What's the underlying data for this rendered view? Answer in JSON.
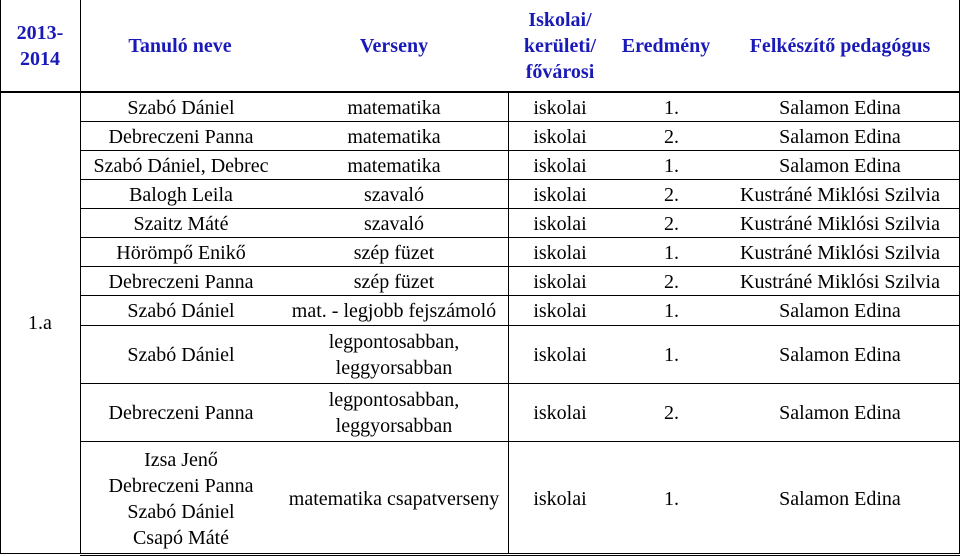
{
  "header": {
    "year": "2013-\n2014",
    "student_name": "Tanuló neve",
    "competition": "Verseny",
    "level": "Iskolai/\nkerületi/\nfővárosi",
    "result": "Eredmény",
    "teacher": "Felkészítő pedagógus"
  },
  "class_label": "1.a",
  "rows": [
    {
      "names": [
        "Szabó Dániel"
      ],
      "competition": "matematika",
      "level": "iskolai",
      "result": "1.",
      "teacher": "Salamon Edina"
    },
    {
      "names": [
        "Debreczeni Panna"
      ],
      "competition": "matematika",
      "level": "iskolai",
      "result": "2.",
      "teacher": "Salamon Edina"
    },
    {
      "names": [
        "Szabó Dániel, Debrec"
      ],
      "competition": "matematika",
      "level": "iskolai",
      "result": "1.",
      "teacher": "Salamon Edina"
    },
    {
      "names": [
        "Balogh Leila"
      ],
      "competition": "szavaló",
      "level": "iskolai",
      "result": "2.",
      "teacher": "Kustráné Miklósi Szilvia"
    },
    {
      "names": [
        "Szaitz Máté"
      ],
      "competition": "szavaló",
      "level": "iskolai",
      "result": "2.",
      "teacher": "Kustráné Miklósi Szilvia"
    },
    {
      "names": [
        "Hörömpő Enikő"
      ],
      "competition": "szép füzet",
      "level": "iskolai",
      "result": "1.",
      "teacher": "Kustráné Miklósi Szilvia"
    },
    {
      "names": [
        "Debreczeni Panna"
      ],
      "competition": "szép füzet",
      "level": "iskolai",
      "result": "2.",
      "teacher": "Kustráné Miklósi Szilvia"
    },
    {
      "names": [
        "Szabó Dániel"
      ],
      "competition": "mat. - legjobb fejszámoló",
      "level": "iskolai",
      "result": "1.",
      "teacher": "Salamon Edina"
    },
    {
      "names": [
        "Szabó Dániel"
      ],
      "competition": "legpontosabban,\nleggyorsabban",
      "level": "iskolai",
      "result": "1.",
      "teacher": "Salamon Edina"
    },
    {
      "names": [
        "Debreczeni Panna"
      ],
      "competition": "legpontosabban,\nleggyorsabban",
      "level": "iskolai",
      "result": "2.",
      "teacher": "Salamon Edina"
    },
    {
      "names": [
        "Izsa Jenő",
        "Debreczeni Panna",
        "Szabó Dániel",
        "Csapó Máté"
      ],
      "competition": "matematika csapatverseny",
      "level": "iskolai",
      "result": "1.",
      "teacher": "Salamon Edina"
    }
  ]
}
